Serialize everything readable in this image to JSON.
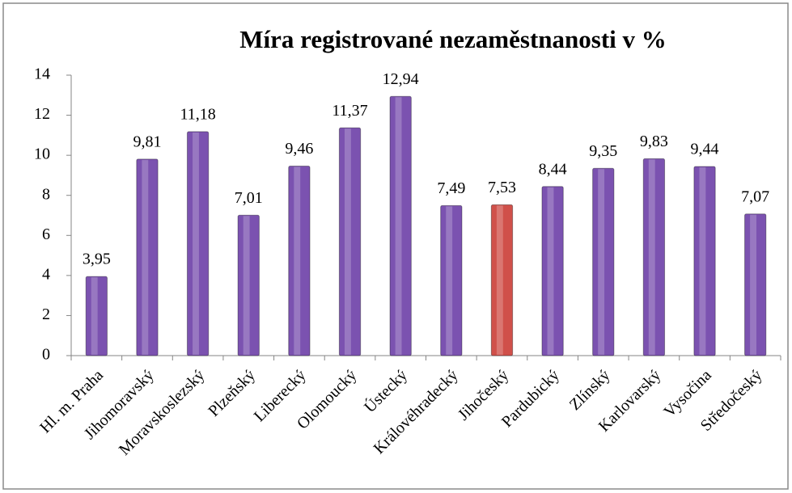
{
  "chart_data": {
    "type": "bar",
    "title": "Míra registrované  nezaměstnanosti v %",
    "categories": [
      "Hl. m. Praha",
      "Jihomoravský",
      "Moravskoslezský",
      "Plzeňský",
      "Liberecký",
      "Olomoucký",
      "Ústecký",
      "Královéhradecký",
      "Jihočeský",
      "Pardubický",
      "Zlínský",
      "Karlovarský",
      "Vysočina",
      "Středočeský"
    ],
    "values": [
      3.95,
      9.81,
      11.18,
      7.01,
      9.46,
      11.37,
      12.94,
      7.49,
      7.53,
      8.44,
      9.35,
      9.83,
      9.44,
      7.07
    ],
    "value_labels": [
      "3,95",
      "9,81",
      "11,18",
      "7,01",
      "9,46",
      "11,37",
      "12,94",
      "7,49",
      "7,53",
      "8,44",
      "9,35",
      "9,83",
      "9,44",
      "7,07"
    ],
    "colors": [
      "#7b52b0",
      "#7b52b0",
      "#7b52b0",
      "#7b52b0",
      "#7b52b0",
      "#7b52b0",
      "#7b52b0",
      "#7b52b0",
      "#d0504a",
      "#7b52b0",
      "#7b52b0",
      "#7b52b0",
      "#7b52b0",
      "#7b52b0"
    ],
    "ylim": [
      0,
      14
    ],
    "yticks": [
      0,
      2,
      4,
      6,
      8,
      10,
      12,
      14
    ],
    "grid": false
  }
}
